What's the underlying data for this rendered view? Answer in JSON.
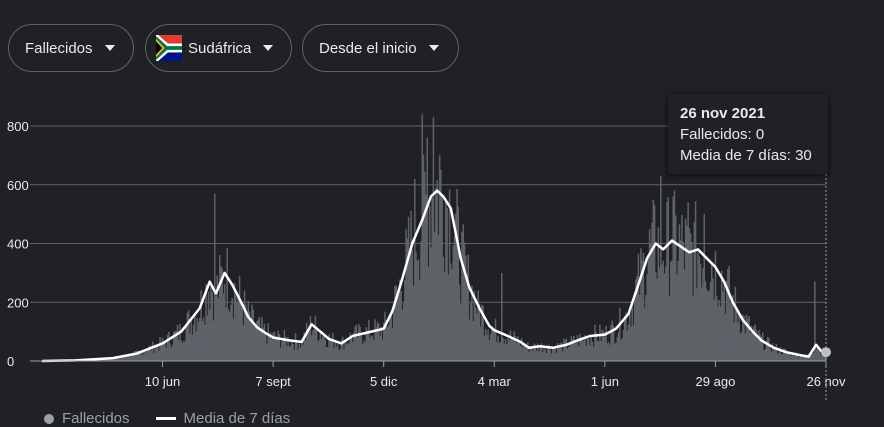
{
  "filters": {
    "metric": "Fallecidos",
    "country": "Sudáfrica",
    "range": "Desde el inicio"
  },
  "tooltip": {
    "date": "26 nov 2021",
    "line1": "Fallecidos: 0",
    "line2": "Media de 7 días: 30"
  },
  "legend": {
    "daily": "Fallecidos",
    "avg": "Media de 7 días"
  },
  "colors": {
    "bars": "#5f6368",
    "line": "#ffffff",
    "grid": "#5f6368",
    "background": "#202124"
  },
  "chart_data": {
    "type": "area",
    "y_ticks": [
      0,
      200,
      400,
      600,
      800
    ],
    "ylim": [
      0,
      860
    ],
    "x_tick_labels": [
      "10 jun",
      "7 sept",
      "5 dic",
      "4 mar",
      "1 jun",
      "29 ago",
      "26 nov"
    ],
    "x_tick_dates": [
      "2020-06-10",
      "2020-09-07",
      "2020-12-05",
      "2021-03-04",
      "2021-06-01",
      "2021-08-29",
      "2021-11-26"
    ],
    "x_range": [
      "2020-03-05",
      "2021-11-26"
    ],
    "series": [
      {
        "name": "Media de 7 días",
        "kind": "line",
        "points": [
          [
            "2020-03-05",
            0
          ],
          [
            "2020-04-01",
            2
          ],
          [
            "2020-05-01",
            10
          ],
          [
            "2020-05-20",
            25
          ],
          [
            "2020-06-01",
            45
          ],
          [
            "2020-06-10",
            60
          ],
          [
            "2020-06-25",
            100
          ],
          [
            "2020-07-10",
            180
          ],
          [
            "2020-07-18",
            270
          ],
          [
            "2020-07-23",
            230
          ],
          [
            "2020-07-30",
            300
          ],
          [
            "2020-08-05",
            260
          ],
          [
            "2020-08-10",
            220
          ],
          [
            "2020-08-18",
            150
          ],
          [
            "2020-08-25",
            115
          ],
          [
            "2020-09-01",
            95
          ],
          [
            "2020-09-07",
            80
          ],
          [
            "2020-09-20",
            70
          ],
          [
            "2020-09-30",
            65
          ],
          [
            "2020-10-08",
            125
          ],
          [
            "2020-10-15",
            100
          ],
          [
            "2020-10-22",
            75
          ],
          [
            "2020-11-01",
            60
          ],
          [
            "2020-11-10",
            85
          ],
          [
            "2020-11-20",
            95
          ],
          [
            "2020-12-05",
            110
          ],
          [
            "2020-12-12",
            170
          ],
          [
            "2020-12-20",
            280
          ],
          [
            "2020-12-28",
            400
          ],
          [
            "2021-01-05",
            480
          ],
          [
            "2021-01-12",
            560
          ],
          [
            "2021-01-17",
            580
          ],
          [
            "2021-01-22",
            560
          ],
          [
            "2021-01-28",
            520
          ],
          [
            "2021-02-05",
            350
          ],
          [
            "2021-02-12",
            250
          ],
          [
            "2021-02-20",
            180
          ],
          [
            "2021-02-28",
            120
          ],
          [
            "2021-03-04",
            105
          ],
          [
            "2021-03-15",
            85
          ],
          [
            "2021-03-25",
            65
          ],
          [
            "2021-04-01",
            45
          ],
          [
            "2021-04-10",
            50
          ],
          [
            "2021-04-20",
            45
          ],
          [
            "2021-05-01",
            55
          ],
          [
            "2021-05-10",
            70
          ],
          [
            "2021-05-20",
            85
          ],
          [
            "2021-06-01",
            90
          ],
          [
            "2021-06-10",
            110
          ],
          [
            "2021-06-20",
            160
          ],
          [
            "2021-06-28",
            260
          ],
          [
            "2021-07-05",
            350
          ],
          [
            "2021-07-12",
            400
          ],
          [
            "2021-07-18",
            380
          ],
          [
            "2021-07-25",
            410
          ],
          [
            "2021-08-01",
            390
          ],
          [
            "2021-08-08",
            370
          ],
          [
            "2021-08-15",
            380
          ],
          [
            "2021-08-22",
            350
          ],
          [
            "2021-08-29",
            320
          ],
          [
            "2021-09-05",
            270
          ],
          [
            "2021-09-12",
            200
          ],
          [
            "2021-09-20",
            140
          ],
          [
            "2021-09-28",
            100
          ],
          [
            "2021-10-05",
            70
          ],
          [
            "2021-10-15",
            45
          ],
          [
            "2021-10-25",
            30
          ],
          [
            "2021-11-05",
            20
          ],
          [
            "2021-11-12",
            15
          ],
          [
            "2021-11-18",
            55
          ],
          [
            "2021-11-22",
            35
          ],
          [
            "2021-11-26",
            30
          ]
        ]
      },
      {
        "name": "Fallecidos",
        "kind": "bars",
        "spikes": [
          [
            "2020-07-22",
            570
          ],
          [
            "2020-12-30",
            620
          ],
          [
            "2021-01-05",
            840
          ],
          [
            "2021-01-09",
            760
          ],
          [
            "2021-01-14",
            830
          ],
          [
            "2021-01-19",
            700
          ],
          [
            "2021-02-19",
            240
          ],
          [
            "2021-03-10",
            300
          ],
          [
            "2021-07-16",
            630
          ],
          [
            "2021-07-26",
            560
          ],
          [
            "2021-08-07",
            540
          ],
          [
            "2021-08-20",
            500
          ],
          [
            "2021-11-17",
            270
          ]
        ]
      }
    ]
  }
}
